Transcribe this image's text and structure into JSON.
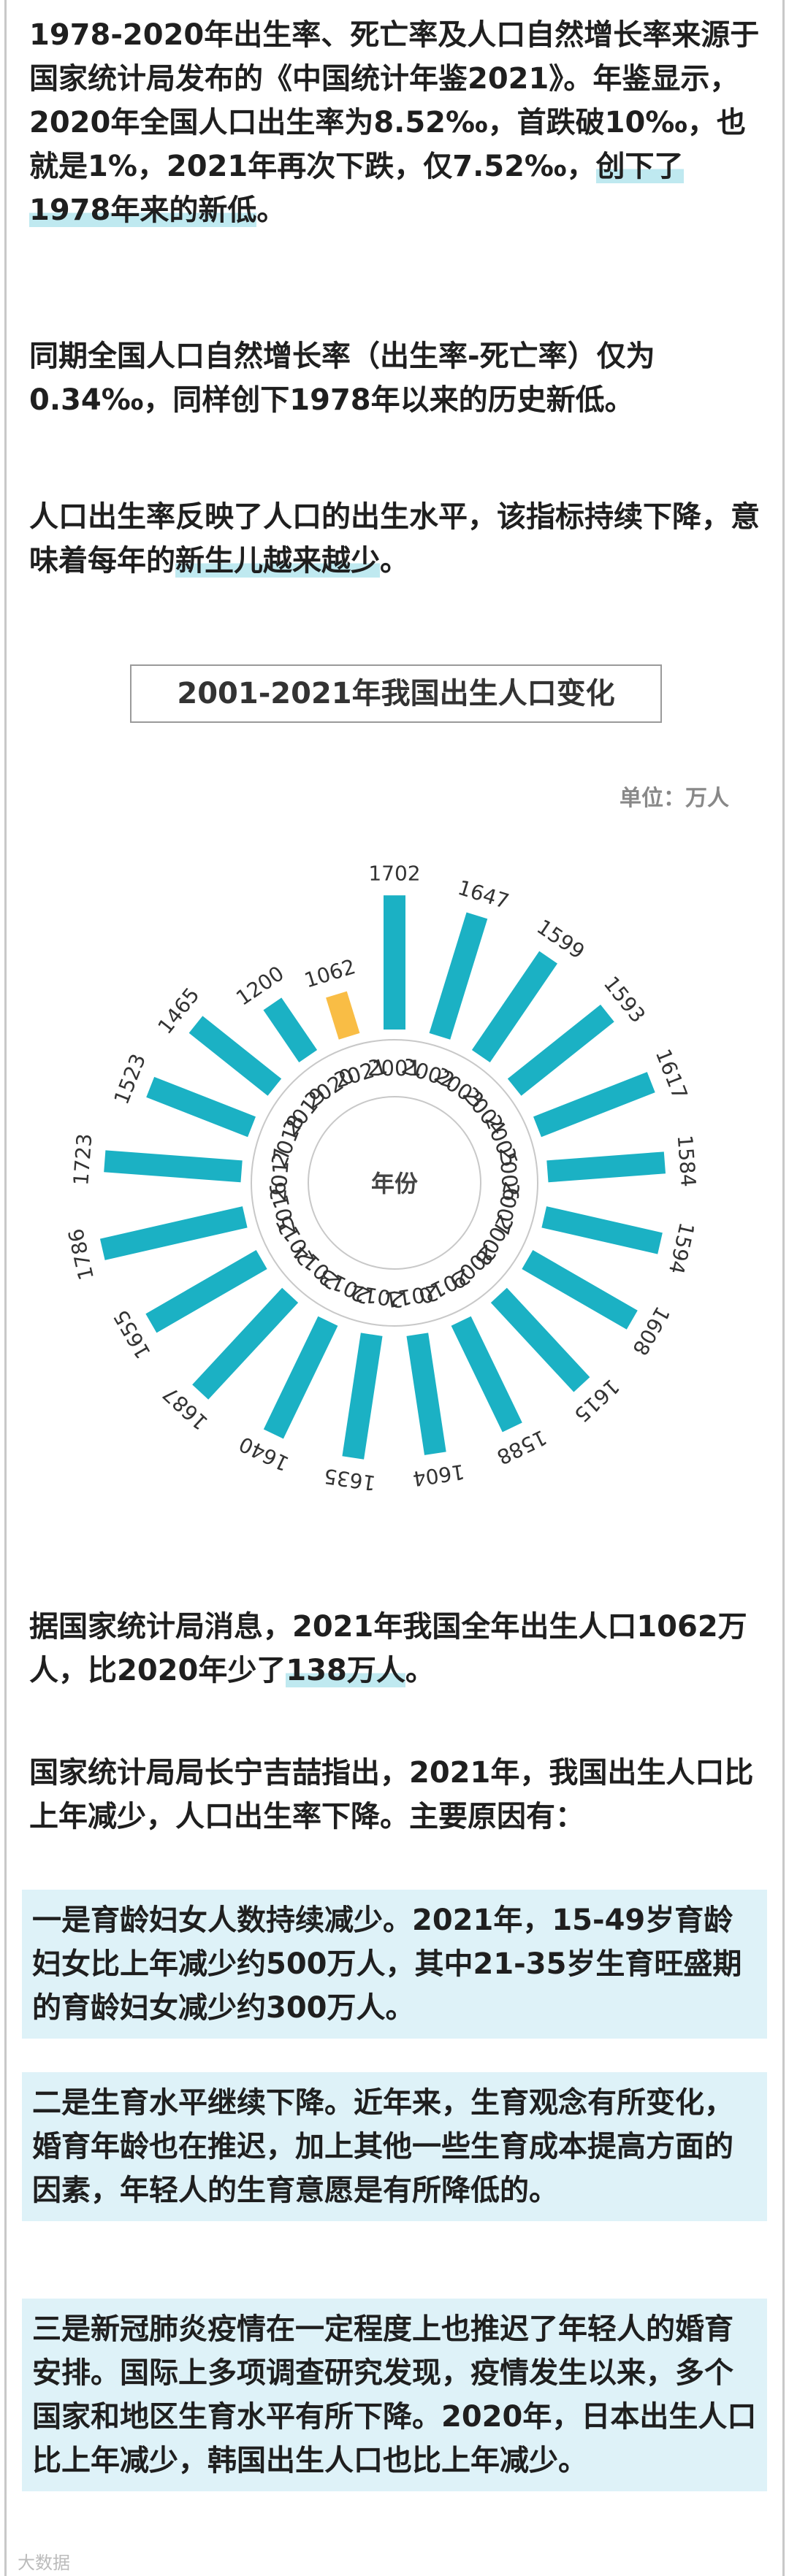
{
  "paragraphs": {
    "p1_before": "1978-2020年出生率、死亡率及人口自然增长率来源于国家统计局发布的《中国统计年鉴2021》。年鉴显示，2020年全国人口出生率为8.52‰，首跌破10‰，也就是1%，2021年再次下跌，仅7.52‰，",
    "p1_highlight": "创下了1978年来的新低",
    "p1_after": "。",
    "p2": "同期全国人口自然增长率（出生率-死亡率）仅为0.34‰，同样创下1978年以来的历史新低。",
    "p3_before": "人口出生率反映了人口的出生水平，该指标持续下降，意味着每年的",
    "p3_highlight": "新生儿越来越少",
    "p3_after": "。",
    "p4_before": "据国家统计局消息，2021年我国全年出生人口1062万人，比2020年少了",
    "p4_highlight": "138万人",
    "p4_after": "。",
    "p5": "国家统计局局长宁吉喆指出，2021年，我国出生人口比上年减少，人口出生率下降。主要原因有："
  },
  "boxes": {
    "b1": "一是育龄妇女人数持续减少。2021年，15-49岁育龄妇女比上年减少约500万人，其中21-35岁生育旺盛期的育龄妇女减少约300万人。",
    "b2": "二是生育水平继续下降。近年来，生育观念有所变化，婚育年龄也在推迟，加上其他一些生育成本提高方面的因素，年轻人的生育意愿是有所降低的。",
    "b3": "三是新冠肺炎疫情在一定程度上也推迟了年轻人的婚育安排。国际上多项调查研究发现，疫情发生以来，多个国家和地区生育水平有所下降。2020年，日本出生人口比上年减少，韩国出生人口也比上年减少。"
  },
  "watermark": "大数据",
  "colors": {
    "bar": "#1bb1c4",
    "highlight_bar": "#f9bd45",
    "ring": "#c8c8c8"
  },
  "chart_data": {
    "type": "bar",
    "layout": "radial",
    "title": "2001-2021年我国出生人口变化",
    "unit": "单位：万人",
    "center_label": "年份",
    "categories": [
      "2001",
      "2002",
      "2003",
      "2004",
      "2005",
      "2006",
      "2007",
      "2008",
      "2009",
      "2010",
      "2011",
      "2012",
      "2013",
      "2014",
      "2015",
      "2016",
      "2017",
      "2018",
      "2019",
      "2020",
      "2021"
    ],
    "values": [
      1702,
      1647,
      1599,
      1593,
      1617,
      1584,
      1594,
      1608,
      1615,
      1588,
      1604,
      1635,
      1640,
      1687,
      1655,
      1786,
      1723,
      1523,
      1465,
      1200,
      1062
    ],
    "highlight_category": "2021"
  }
}
